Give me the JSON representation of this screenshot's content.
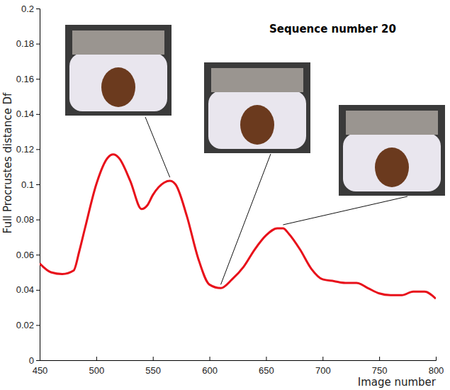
{
  "chart_data": {
    "type": "line",
    "title": "Sequence number 20",
    "x_label": "Image number",
    "y_label": "Full Procrustes distance Df",
    "x": [
      450,
      460,
      470,
      480,
      485,
      490,
      500,
      510,
      515,
      520,
      530,
      540,
      545,
      550,
      560,
      565,
      570,
      580,
      590,
      600,
      610,
      620,
      630,
      640,
      650,
      660,
      665,
      670,
      680,
      690,
      700,
      710,
      720,
      730,
      740,
      750,
      760,
      770,
      780,
      790,
      800
    ],
    "values": [
      0.055,
      0.05,
      0.049,
      0.051,
      0.062,
      0.075,
      0.1,
      0.115,
      0.117,
      0.115,
      0.102,
      0.086,
      0.088,
      0.094,
      0.101,
      0.102,
      0.1,
      0.082,
      0.058,
      0.043,
      0.041,
      0.046,
      0.053,
      0.063,
      0.071,
      0.075,
      0.075,
      0.072,
      0.063,
      0.052,
      0.046,
      0.045,
      0.044,
      0.044,
      0.041,
      0.038,
      0.037,
      0.037,
      0.039,
      0.039,
      0.035
    ],
    "color": "#e8101a",
    "xlim": [
      450,
      800
    ],
    "xticks": [
      450,
      500,
      550,
      600,
      650,
      700,
      750,
      800
    ],
    "ylim": [
      0,
      0.2
    ],
    "yticks": [
      0,
      0.02,
      0.04,
      0.06,
      0.08,
      0.1,
      0.12,
      0.14,
      0.16,
      0.18,
      0.2
    ],
    "grid": false
  }
}
